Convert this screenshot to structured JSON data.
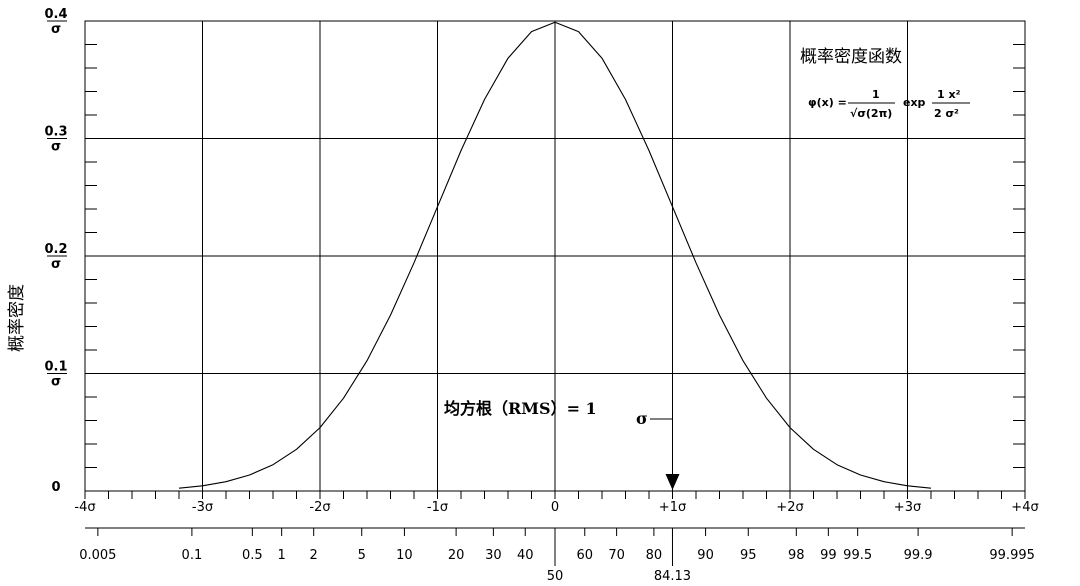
{
  "chart_data": {
    "type": "line",
    "title": "概率密度函数",
    "ylabel": "概率密度",
    "formula": {
      "lhs": "φ(x) =",
      "frac1_num": "1",
      "frac1_den": "√σ(2π)",
      "exp": "exp",
      "frac2_num": "1 x²",
      "frac2_den": "2 σ²"
    },
    "xlim": [
      -4,
      4
    ],
    "ylim": [
      0,
      0.4
    ],
    "x_ticks": [
      {
        "value": -4,
        "label": "-4σ"
      },
      {
        "value": -3,
        "label": "-3σ"
      },
      {
        "value": -2,
        "label": "-2σ"
      },
      {
        "value": -1,
        "label": "-1σ"
      },
      {
        "value": 0,
        "label": "0"
      },
      {
        "value": 1,
        "label": "+1σ"
      },
      {
        "value": 2,
        "label": "+2σ"
      },
      {
        "value": 3,
        "label": "+3σ"
      },
      {
        "value": 4,
        "label": "+4σ"
      }
    ],
    "y_ticks": [
      {
        "value": 0.4,
        "num": "0.4",
        "den": "σ"
      },
      {
        "value": 0.3,
        "num": "0.3",
        "den": "σ"
      },
      {
        "value": 0.2,
        "num": "0.2",
        "den": "σ"
      },
      {
        "value": 0.1,
        "num": "0.1",
        "den": "σ"
      },
      {
        "value": 0,
        "num": "0",
        "den": ""
      }
    ],
    "percentile_ticks": [
      {
        "value": 0.005,
        "label": "0.005"
      },
      {
        "value": 0.1,
        "label": "0.1"
      },
      {
        "value": 0.5,
        "label": "0.5"
      },
      {
        "value": 1,
        "label": "1"
      },
      {
        "value": 2,
        "label": "2"
      },
      {
        "value": 5,
        "label": "5"
      },
      {
        "value": 10,
        "label": "10"
      },
      {
        "value": 20,
        "label": "20"
      },
      {
        "value": 30,
        "label": "30"
      },
      {
        "value": 40,
        "label": "40"
      },
      {
        "value": 50,
        "label": "50"
      },
      {
        "value": 60,
        "label": "60"
      },
      {
        "value": 70,
        "label": "70"
      },
      {
        "value": 80,
        "label": "80"
      },
      {
        "value": 84.13,
        "label": "84.13"
      },
      {
        "value": 90,
        "label": "90"
      },
      {
        "value": 95,
        "label": "95"
      },
      {
        "value": 98,
        "label": "98"
      },
      {
        "value": 99,
        "label": "99"
      },
      {
        "value": 99.5,
        "label": "99.5"
      },
      {
        "value": 99.9,
        "label": "99.9"
      },
      {
        "value": 99.995,
        "label": "99.995"
      }
    ],
    "series": [
      {
        "x": [
          -3.2,
          -3.0,
          -2.8,
          -2.6,
          -2.4,
          -2.2,
          -2.0,
          -1.8,
          -1.6,
          -1.4,
          -1.2,
          -1.0,
          -0.8,
          -0.6,
          -0.4,
          -0.2,
          0,
          0.2,
          0.4,
          0.6,
          0.8,
          1.0,
          1.2,
          1.4,
          1.6,
          1.8,
          2.0,
          2.2,
          2.4,
          2.6,
          2.8,
          3.0,
          3.2
        ],
        "y": [
          0.0024,
          0.0044,
          0.0079,
          0.0136,
          0.0224,
          0.0355,
          0.054,
          0.079,
          0.1109,
          0.1497,
          0.1942,
          0.242,
          0.2897,
          0.3332,
          0.3683,
          0.391,
          0.3989,
          0.391,
          0.3683,
          0.3332,
          0.2897,
          0.242,
          0.1942,
          0.1497,
          0.1109,
          0.079,
          0.054,
          0.0355,
          0.0224,
          0.0136,
          0.0079,
          0.0044,
          0.0024
        ]
      }
    ],
    "annotations": {
      "rms": "均方根（RMS）= 1",
      "sigma": "σ",
      "arrow_x": 1
    },
    "grid": true
  }
}
